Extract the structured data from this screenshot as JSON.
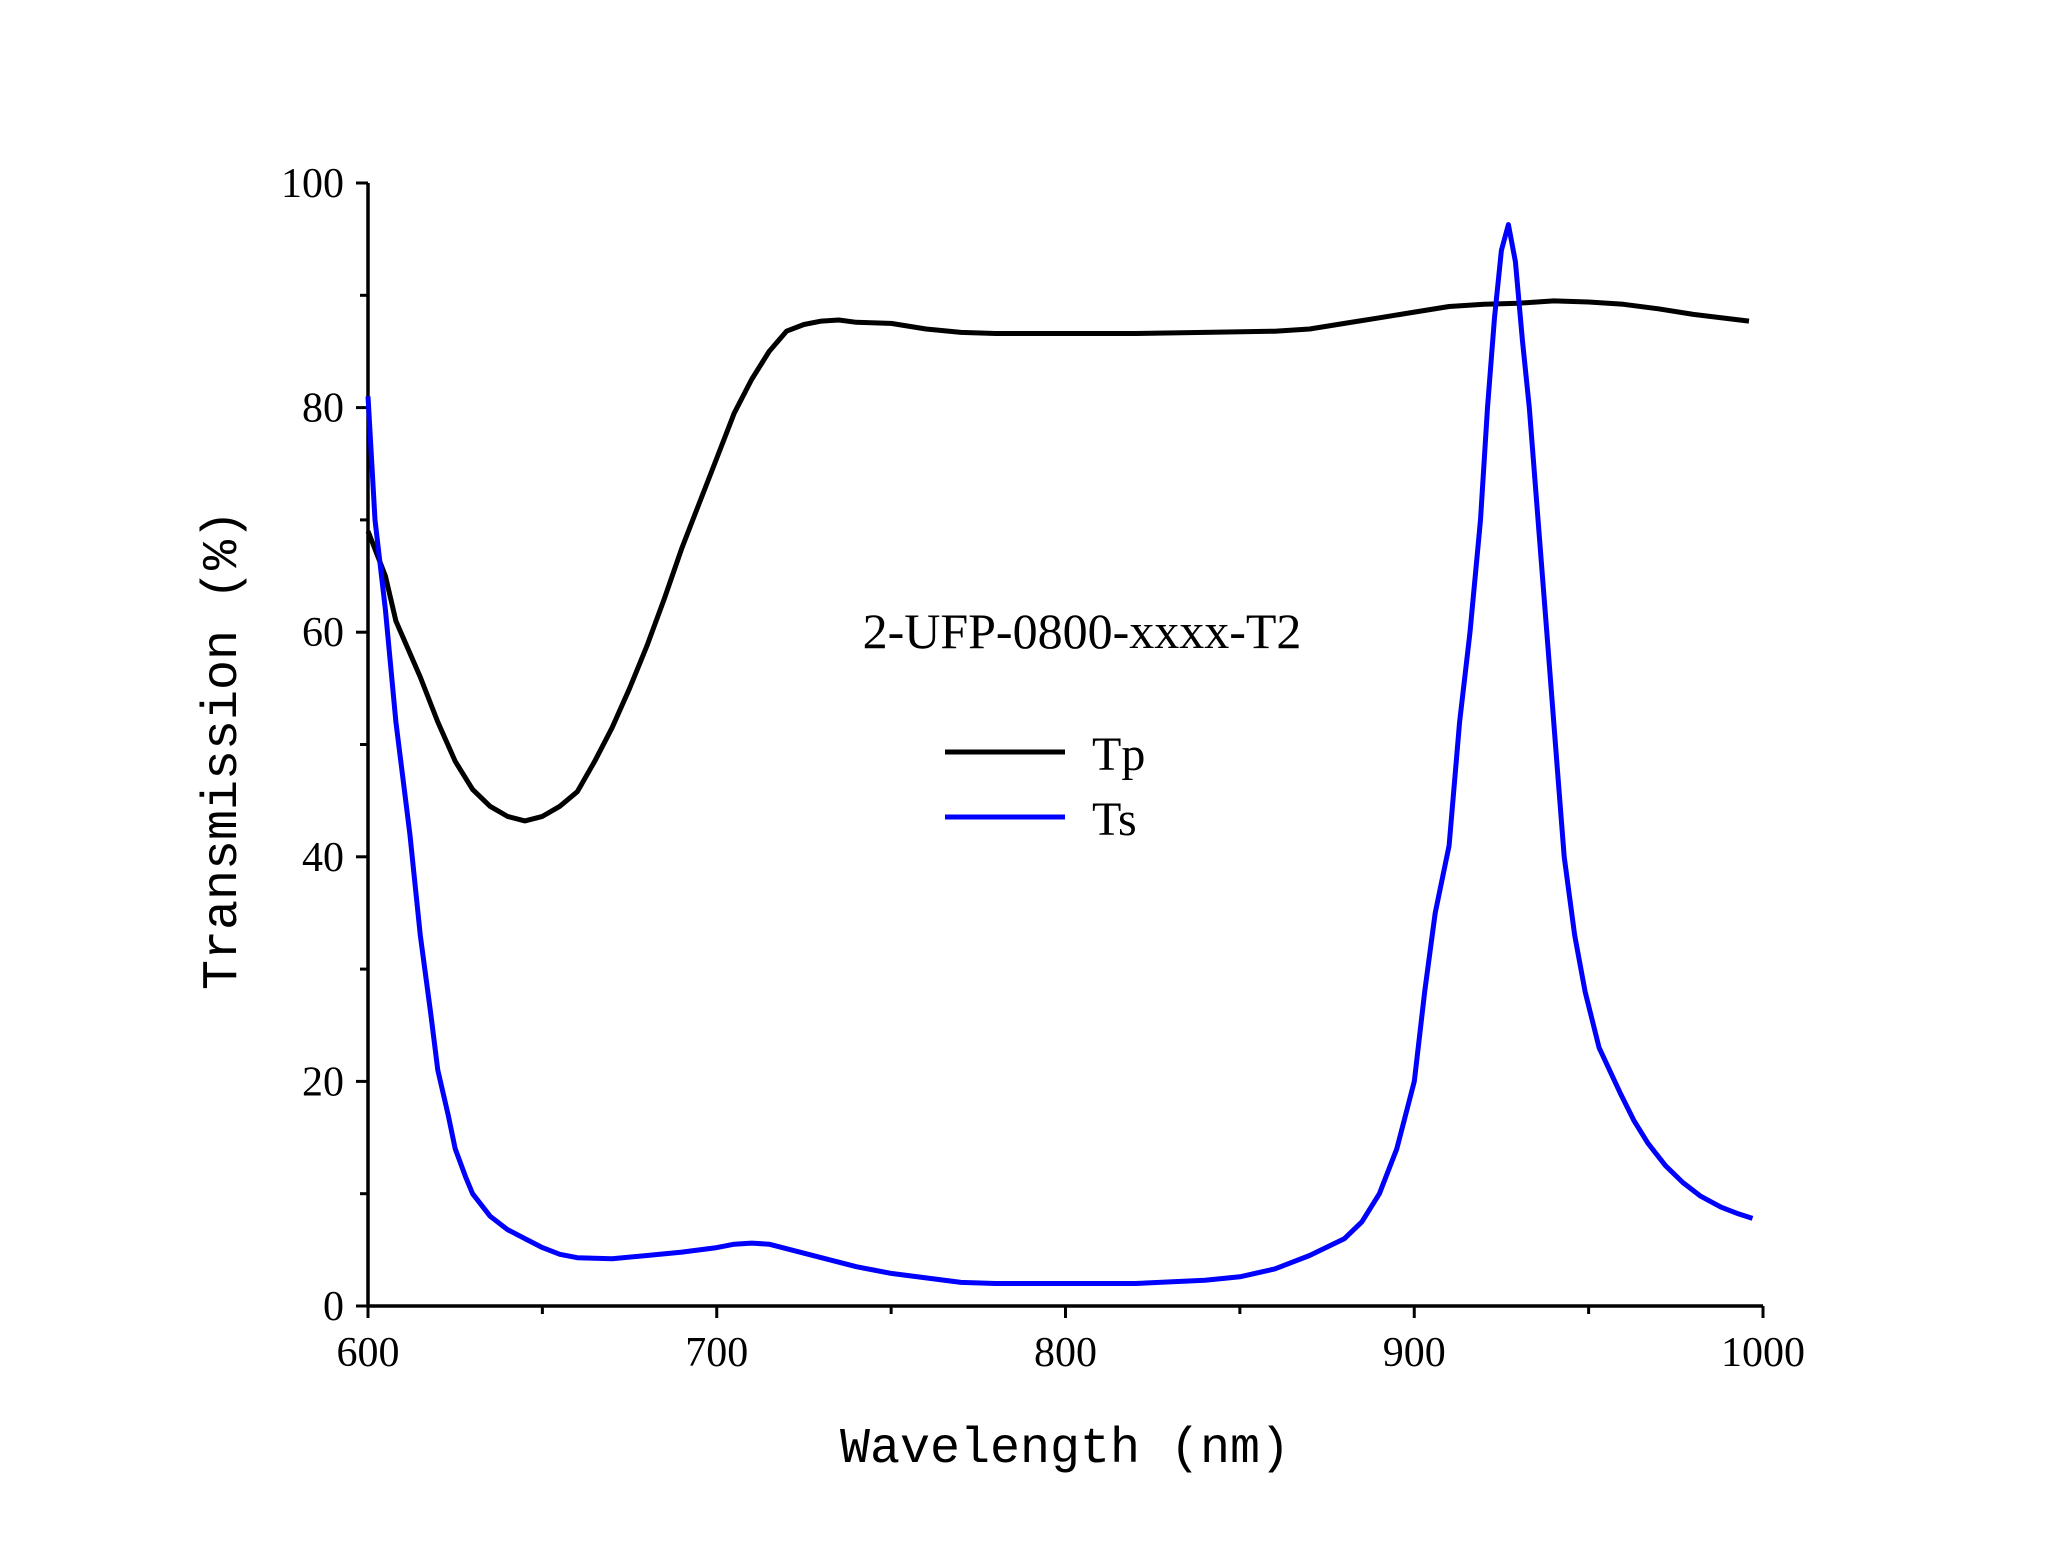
{
  "chart_data": {
    "type": "line",
    "title": "",
    "annotation": "2-UFP-0800-xxxx-T2",
    "xlabel": "Wavelength (nm)",
    "ylabel": "Transmission (%)",
    "xlim": [
      600,
      1000
    ],
    "ylim": [
      0,
      100
    ],
    "xticks": [
      600,
      700,
      800,
      900,
      1000
    ],
    "yticks": [
      0,
      20,
      40,
      60,
      80,
      100
    ],
    "grid": false,
    "legend_placement": "center",
    "series": [
      {
        "name": "Tp",
        "color": "#000000",
        "x": [
          600,
          605,
          608,
          615,
          620,
          625,
          630,
          635,
          640,
          645,
          650,
          655,
          660,
          665,
          670,
          675,
          680,
          685,
          690,
          695,
          700,
          705,
          710,
          715,
          720,
          725,
          730,
          735,
          740,
          750,
          760,
          770,
          780,
          800,
          820,
          840,
          860,
          870,
          880,
          890,
          900,
          910,
          920,
          930,
          940,
          950,
          960,
          970,
          980,
          996
        ],
        "y": [
          69,
          65,
          61,
          56,
          52,
          48.5,
          46,
          44.5,
          43.6,
          43.2,
          43.6,
          44.5,
          45.8,
          48.5,
          51.5,
          55,
          58.8,
          63,
          67.5,
          71.5,
          75.5,
          79.5,
          82.5,
          85,
          86.8,
          87.4,
          87.7,
          87.8,
          87.6,
          87.5,
          87,
          86.7,
          86.6,
          86.6,
          86.6,
          86.7,
          86.8,
          87,
          87.5,
          88,
          88.5,
          89,
          89.2,
          89.3,
          89.5,
          89.4,
          89.2,
          88.8,
          88.3,
          87.7
        ]
      },
      {
        "name": "Ts",
        "color": "#0000ff",
        "x": [
          600,
          602,
          605,
          608,
          612,
          615,
          618,
          620,
          623,
          625,
          628,
          630,
          635,
          640,
          645,
          650,
          655,
          660,
          670,
          680,
          690,
          700,
          705,
          710,
          715,
          720,
          730,
          740,
          750,
          760,
          770,
          780,
          800,
          820,
          840,
          850,
          860,
          870,
          880,
          885,
          890,
          895,
          900,
          903,
          906,
          910,
          913,
          916,
          919,
          921,
          923,
          925,
          927,
          929,
          931,
          933,
          936,
          938,
          941,
          943,
          946,
          949,
          953,
          959,
          963,
          967,
          972,
          977,
          982,
          988,
          993,
          997
        ],
        "y": [
          81,
          70,
          62,
          52,
          42,
          33,
          26,
          21,
          17,
          14,
          11.5,
          10,
          8,
          6.8,
          6,
          5.2,
          4.6,
          4.3,
          4.2,
          4.5,
          4.8,
          5.2,
          5.5,
          5.6,
          5.5,
          5.1,
          4.3,
          3.5,
          2.9,
          2.5,
          2.1,
          2,
          2,
          2,
          2.3,
          2.6,
          3.3,
          4.5,
          6,
          7.5,
          10,
          14,
          20,
          28,
          35,
          41,
          52,
          60,
          70,
          80,
          88,
          94,
          96.3,
          93,
          86,
          80,
          68,
          60,
          48,
          40,
          33,
          28,
          23,
          19,
          16.5,
          14.5,
          12.5,
          11,
          9.8,
          8.8,
          8.2,
          7.8
        ]
      }
    ]
  }
}
